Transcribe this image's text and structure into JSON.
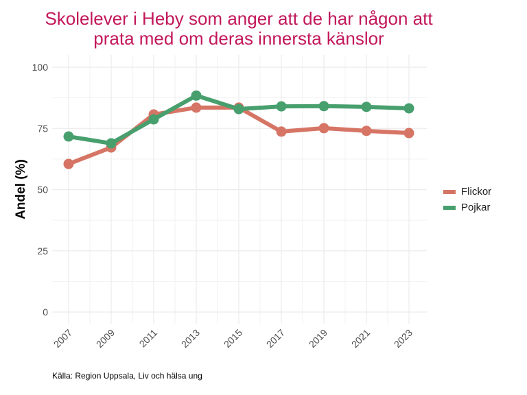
{
  "chart_data": {
    "type": "line",
    "title": [
      "Skolelever i Heby som anger att de har någon att",
      "prata med om deras innersta känslor"
    ],
    "xlabel": "",
    "ylabel": "Andel (%)",
    "x": [
      2007,
      2009,
      2011,
      2013,
      2015,
      2017,
      2019,
      2021,
      2023
    ],
    "x_tick_labels": [
      "2007",
      "2009",
      "2011",
      "2013",
      "2015",
      "2017",
      "2019",
      "2021",
      "2023"
    ],
    "ylim": [
      0,
      100
    ],
    "y_ticks": [
      0,
      25,
      50,
      75,
      100
    ],
    "y_tick_labels": [
      "0",
      "25",
      "50",
      "75",
      "100"
    ],
    "grid": true,
    "legend_position": "right",
    "series": [
      {
        "name": "Flickor",
        "color": "#D67565",
        "values": [
          60.5,
          67.2,
          80.7,
          83.5,
          83.5,
          73.7,
          75.1,
          74.0,
          73.1
        ]
      },
      {
        "name": "Pojkar",
        "color": "#489F6E",
        "values": [
          71.7,
          68.9,
          78.7,
          88.4,
          82.9,
          84.0,
          84.1,
          83.8,
          83.2
        ]
      }
    ],
    "caption": "Källa: Region Uppsala, Liv och hälsa ung"
  }
}
